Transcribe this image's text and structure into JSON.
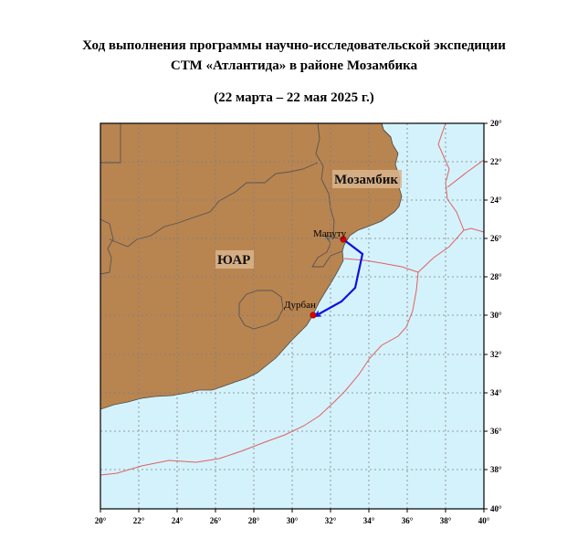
{
  "title": {
    "line1": "Ход выполнения программы научно-исследовательской экспедиции",
    "line2": "СТМ «Атлантида» в районе Мозамбика",
    "line3": "(22 марта – 22 мая 2025 г.)"
  },
  "map": {
    "lon_ticks": [
      "20°",
      "22°",
      "24°",
      "26°",
      "28°",
      "30°",
      "32°",
      "34°",
      "36°",
      "38°",
      "40°"
    ],
    "lat_ticks": [
      "20°",
      "22°",
      "24°",
      "26°",
      "28°",
      "30°",
      "32°",
      "34°",
      "36°",
      "38°",
      "40°"
    ],
    "countries": {
      "mozambique": "Мозамбик",
      "south_africa": "ЮАР"
    },
    "cities": {
      "maputo": "Мапуту",
      "durban": "Дурбан"
    },
    "colors": {
      "land": "#b88450",
      "sea": "#d4f2fb",
      "border": "#4a4a4a",
      "zone": "#e06060",
      "route": "#1010e0",
      "port": "#dd0000",
      "grid": "#808080"
    }
  }
}
